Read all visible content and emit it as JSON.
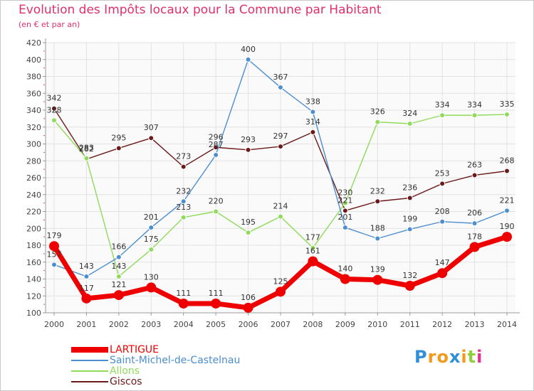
{
  "chart_data": {
    "type": "line",
    "title": "Evolution des Impôts locaux pour la Commune par Habitant",
    "subtitle": "(en € et par an)",
    "xlabel": "",
    "ylabel": "",
    "ylim": [
      100,
      420
    ],
    "ytick_step": 20,
    "grid": true,
    "legend_position": "bottom-left",
    "x": [
      "2000",
      "2001",
      "2002",
      "2003",
      "2004",
      "2005",
      "2006",
      "2007",
      "2008",
      "2009",
      "2010",
      "2011",
      "2012",
      "2013",
      "2014"
    ],
    "series": [
      {
        "name": "LARTIGUE",
        "color": "#ee0000",
        "values": [
          179,
          117,
          121,
          130,
          111,
          111,
          106,
          125,
          161,
          140,
          139,
          132,
          147,
          178,
          190
        ]
      },
      {
        "name": "Saint-Michel-de-Castelnau",
        "color": "#4d8ed0",
        "values": [
          157,
          143,
          166,
          201,
          232,
          287,
          400,
          367,
          338,
          201,
          188,
          199,
          208,
          206,
          221
        ]
      },
      {
        "name": "Allons",
        "color": "#8fdb5a",
        "values": [
          328,
          283,
          143,
          175,
          213,
          220,
          195,
          214,
          177,
          230,
          326,
          324,
          334,
          334,
          335
        ]
      },
      {
        "name": "Giscos",
        "color": "#6b1a1a",
        "values": [
          342,
          282,
          295,
          307,
          273,
          296,
          293,
          297,
          314,
          221,
          232,
          236,
          253,
          263,
          268
        ]
      }
    ]
  },
  "logo": {
    "letters": [
      "P",
      "r",
      "o",
      "x",
      "i",
      "t",
      "i"
    ],
    "colors": [
      "#2f8fd8",
      "#f39a1e",
      "#f39a1e",
      "#2f8fd8",
      "#f39a1e",
      "#8fcf3c",
      "#e6318a"
    ]
  }
}
